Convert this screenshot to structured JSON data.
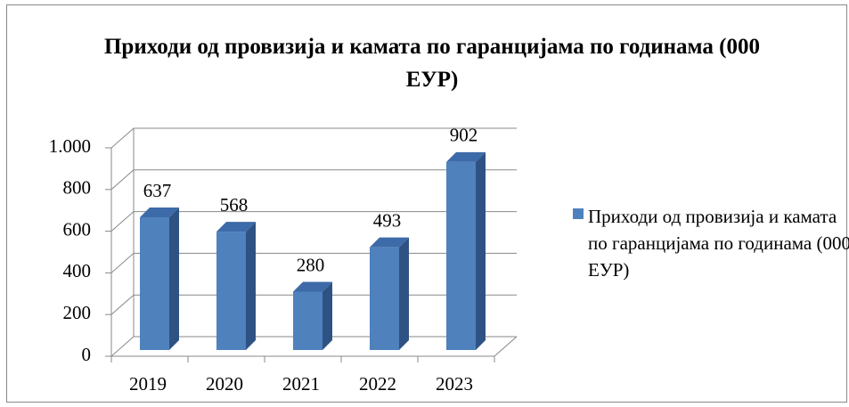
{
  "chart_data": {
    "type": "bar3d",
    "title": "Приходи од провизија и камата по гаранцијама по годинама (000 ЕУР)",
    "categories": [
      "2019",
      "2020",
      "2021",
      "2022",
      "2023"
    ],
    "series": [
      {
        "name": "Приходи од провизија и камата по гаранцијама по годинама (000 ЕУР)",
        "color": "#4f81bd",
        "values": [
          637,
          568,
          280,
          493,
          902
        ]
      }
    ],
    "ylim": [
      0,
      1000
    ],
    "yticks": [
      0,
      200,
      400,
      600,
      800,
      {
        "value": 1000,
        "label": "1.000"
      }
    ],
    "grid": true,
    "legend": "right"
  }
}
